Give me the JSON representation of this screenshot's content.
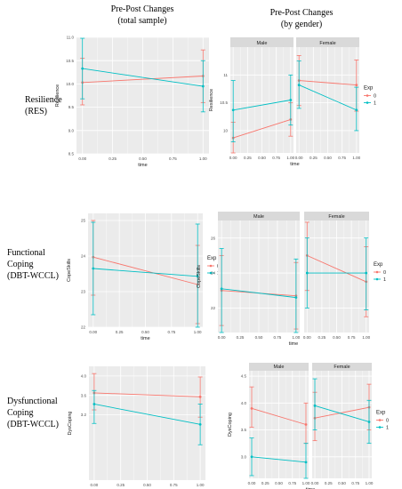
{
  "header": {
    "col1_line1": "Pre-Post Changes",
    "col1_line2": "(total sample)",
    "col2_line1": "Pre-Post Changes",
    "col2_line2": "(by gender)"
  },
  "rows": [
    {
      "label_lines": [
        "Resilience",
        "(RES)"
      ]
    },
    {
      "label_lines": [
        "Functional",
        "Coping",
        "(DBT-WCCL)"
      ]
    },
    {
      "label_lines": [
        "Dysfunctional",
        "Coping",
        "(DBT-WCCL)"
      ]
    }
  ],
  "colors": {
    "exp0": "#F8766D",
    "exp1": "#00BFC4",
    "panel_bg": "#EBEBEB",
    "strip_bg": "#D9D9D9"
  },
  "chart_data": [
    {
      "type": "line",
      "ylabel": "Resilience",
      "xlabel": "time",
      "ylim": [
        8.5,
        11.0
      ],
      "yticks": [
        8.5,
        9.0,
        9.5,
        10.0,
        10.5,
        11.0
      ],
      "xticks": [
        "0.00",
        "0.25",
        "0.50",
        "0.75",
        "1.00"
      ],
      "series": [
        {
          "exp": "0",
          "x": [
            0,
            1
          ],
          "y": [
            10.03,
            10.17
          ],
          "lo": [
            9.55,
            9.6
          ],
          "hi": [
            10.55,
            10.73
          ]
        },
        {
          "exp": "1",
          "x": [
            0,
            1
          ],
          "y": [
            10.33,
            9.95
          ],
          "lo": [
            9.68,
            9.4
          ],
          "hi": [
            10.98,
            10.5
          ]
        }
      ]
    },
    {
      "type": "line",
      "ylabel": "Resilience",
      "xlabel": "time",
      "ylim": [
        9.6,
        11.5
      ],
      "yticks": [
        10,
        10.5,
        11
      ],
      "ytick_labels": [
        "10",
        "10.5",
        "11"
      ],
      "xticks": [
        "0.00",
        "0.25",
        "0.50",
        "0.75",
        "1.00"
      ],
      "legend_title": "Exp",
      "legend_items": [
        "0",
        "1"
      ],
      "legend": "right",
      "facets": [
        {
          "strip": "Male",
          "series": [
            {
              "exp": "0",
              "x": [
                0,
                1
              ],
              "y": [
                9.87,
                10.2
              ],
              "lo": [
                9.6,
                9.9
              ],
              "hi": [
                10.15,
                10.5
              ]
            },
            {
              "exp": "1",
              "x": [
                0,
                1
              ],
              "y": [
                10.37,
                10.55
              ],
              "lo": [
                9.8,
                10.1
              ],
              "hi": [
                10.9,
                11.0
              ]
            }
          ]
        },
        {
          "strip": "Female",
          "series": [
            {
              "exp": "0",
              "x": [
                0,
                1
              ],
              "y": [
                10.9,
                10.82
              ],
              "lo": [
                10.45,
                10.35
              ],
              "hi": [
                11.35,
                11.27
              ]
            },
            {
              "exp": "1",
              "x": [
                0,
                1
              ],
              "y": [
                10.82,
                10.37
              ],
              "lo": [
                10.4,
                10.0
              ],
              "hi": [
                11.25,
                10.78
              ]
            }
          ]
        }
      ]
    },
    {
      "type": "line",
      "ylabel": "CopeSkills",
      "xlabel": "time",
      "ylim": [
        22,
        25.2
      ],
      "yticks": [
        22,
        23,
        24,
        25
      ],
      "ytick_labels": [
        "22",
        "23",
        "24",
        "25"
      ],
      "xticks": [
        "0.00",
        "0.25",
        "0.50",
        "0.75",
        "1.00"
      ],
      "legend_title": "Exp",
      "legend_items": [
        "0",
        "1"
      ],
      "legend": "right",
      "series": [
        {
          "exp": "0",
          "x": [
            0,
            1
          ],
          "y": [
            23.97,
            23.2
          ],
          "lo": [
            22.9,
            22.1
          ],
          "hi": [
            25.0,
            24.3
          ]
        },
        {
          "exp": "1",
          "x": [
            0,
            1
          ],
          "y": [
            23.65,
            23.43
          ],
          "lo": [
            22.35,
            22.0
          ],
          "hi": [
            24.95,
            24.9
          ]
        }
      ]
    },
    {
      "type": "line",
      "ylabel": "CopeSkills",
      "xlabel": "time",
      "ylim": [
        20.6,
        27
      ],
      "yticks": [
        22,
        24,
        26
      ],
      "ytick_labels": [
        "22",
        "24",
        "26"
      ],
      "xticks": [
        "0.00",
        "0.25",
        "0.50",
        "0.75",
        "1.00"
      ],
      "legend_title": "Exp",
      "legend_items": [
        "0",
        "1"
      ],
      "legend": "right",
      "facets": [
        {
          "strip": "Male",
          "series": [
            {
              "exp": "0",
              "x": [
                0,
                1
              ],
              "y": [
                23.0,
                22.7
              ],
              "lo": [
                21.0,
                20.8
              ],
              "hi": [
                25.0,
                24.6
              ]
            },
            {
              "exp": "1",
              "x": [
                0,
                1
              ],
              "y": [
                23.1,
                22.6
              ],
              "lo": [
                20.6,
                20.6
              ],
              "hi": [
                25.4,
                24.8
              ]
            }
          ]
        },
        {
          "strip": "Female",
          "series": [
            {
              "exp": "0",
              "x": [
                0,
                1
              ],
              "y": [
                25.0,
                23.5
              ],
              "lo": [
                23.0,
                21.5
              ],
              "hi": [
                26.9,
                25.5
              ]
            },
            {
              "exp": "1",
              "x": [
                0,
                1
              ],
              "y": [
                24.0,
                24.0
              ],
              "lo": [
                22.0,
                21.9
              ],
              "hi": [
                26.0,
                26.0
              ]
            }
          ]
        }
      ]
    },
    {
      "type": "line",
      "ylabel": "DysCoping",
      "xlabel": "time",
      "ylim": [
        1.85,
        4.2
      ],
      "yticks": [
        3.2,
        3.6,
        4.0
      ],
      "ytick_labels": [
        "3.2",
        "3.6",
        "4.0"
      ],
      "xticks": [
        "0.00",
        "0.25",
        "0.50",
        "0.75",
        "1.00"
      ],
      "series": [
        {
          "exp": "0",
          "x": [
            0,
            1
          ],
          "y": [
            3.65,
            3.57
          ],
          "lo": [
            3.3,
            3.15
          ],
          "hi": [
            4.05,
            3.98
          ]
        },
        {
          "exp": "1",
          "x": [
            0,
            1
          ],
          "y": [
            3.42,
            3.0
          ],
          "lo": [
            3.02,
            2.58
          ],
          "hi": [
            3.7,
            3.42
          ]
        }
      ]
    },
    {
      "type": "line",
      "ylabel": "DysCoping",
      "xlabel": "time",
      "ylim": [
        2.6,
        4.6
      ],
      "yticks": [
        3.0,
        3.5,
        4.0,
        4.5
      ],
      "ytick_labels": [
        "3.0",
        "3.5",
        "4.0",
        "4.5"
      ],
      "xticks": [
        "0.00",
        "0.25",
        "0.50",
        "0.75",
        "1.00"
      ],
      "legend_title": "Exp",
      "legend_items": [
        "0",
        "1"
      ],
      "legend": "right",
      "facets": [
        {
          "strip": "Male",
          "series": [
            {
              "exp": "0",
              "x": [
                0,
                1
              ],
              "y": [
                3.9,
                3.6
              ],
              "lo": [
                3.55,
                3.25
              ],
              "hi": [
                4.3,
                4.0
              ]
            },
            {
              "exp": "1",
              "x": [
                0,
                1
              ],
              "y": [
                3.0,
                2.9
              ],
              "lo": [
                2.65,
                2.6
              ],
              "hi": [
                3.35,
                3.25
              ]
            }
          ]
        },
        {
          "strip": "Female",
          "series": [
            {
              "exp": "0",
              "x": [
                0,
                1
              ],
              "y": [
                3.72,
                3.92
              ],
              "lo": [
                3.3,
                3.5
              ],
              "hi": [
                4.2,
                4.35
              ]
            },
            {
              "exp": "1",
              "x": [
                0,
                1
              ],
              "y": [
                3.95,
                3.65
              ],
              "lo": [
                3.5,
                3.25
              ],
              "hi": [
                4.45,
                4.05
              ]
            }
          ]
        }
      ]
    }
  ]
}
